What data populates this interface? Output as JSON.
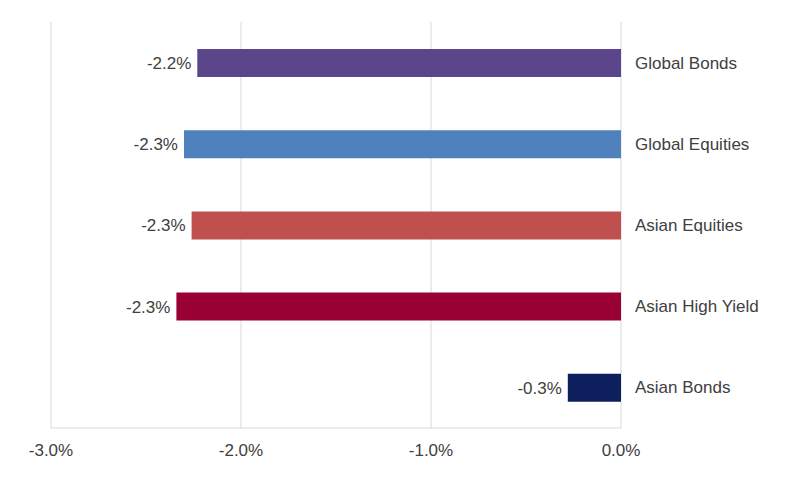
{
  "chart_data": {
    "type": "bar",
    "orientation": "horizontal",
    "categories": [
      "Global Bonds",
      "Global Equities",
      "Asian Equities",
      "Asian High Yield",
      "Asian Bonds"
    ],
    "values": [
      -2.23,
      -2.3,
      -2.26,
      -2.34,
      -0.28
    ],
    "value_labels": [
      "-2.2%",
      "-2.3%",
      "-2.3%",
      "-2.3%",
      "-0.3%"
    ],
    "colors": [
      "#5b468c",
      "#4f81bd",
      "#c0504d",
      "#990033",
      "#0d1f5c"
    ],
    "xlim": [
      -3,
      0
    ],
    "xticks": [
      {
        "value": -3,
        "label": "-3.0%"
      },
      {
        "value": -2,
        "label": "-2.0%"
      },
      {
        "value": -1,
        "label": "-1.0%"
      },
      {
        "value": 0,
        "label": "0.0%"
      }
    ],
    "grid": true,
    "data_labels": true
  }
}
